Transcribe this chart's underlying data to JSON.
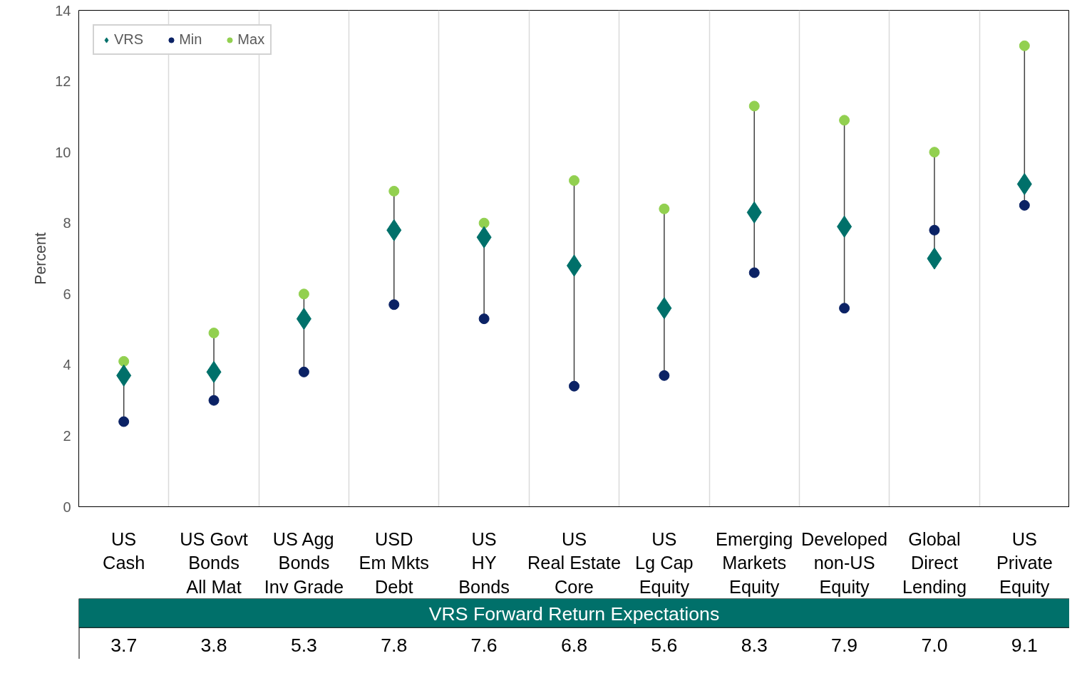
{
  "chart_data": {
    "type": "scatter",
    "ylabel": "Percent",
    "categories": [
      "US\nCash",
      "US Govt\nBonds\nAll Mat",
      "US Agg\nBonds\nInv Grade",
      "USD\nEm Mkts\nDebt",
      "US\nHY\nBonds",
      "US\nReal Estate\nCore",
      "US\nLg Cap\nEquity",
      "Emerging\nMarkets\nEquity",
      "Developed\nnon-US\nEquity",
      "Global\nDirect\nLending",
      "US\nPrivate\nEquity"
    ],
    "series": [
      {
        "name": "VRS",
        "color": "#00706a",
        "marker": "diamond",
        "values": [
          3.7,
          3.8,
          5.3,
          7.8,
          7.6,
          6.8,
          5.6,
          8.3,
          7.9,
          7.0,
          9.1
        ],
        "value_labels": [
          "3.7",
          "3.8",
          "5.3",
          "7.8",
          "7.6",
          "6.8",
          "5.6",
          "8.3",
          "7.9",
          "7.0",
          "9.1"
        ]
      },
      {
        "name": "Min",
        "color": "#0b2265",
        "marker": "circle",
        "values": [
          2.4,
          3.0,
          3.8,
          5.7,
          5.3,
          3.4,
          3.7,
          6.6,
          5.6,
          7.8,
          8.5
        ]
      },
      {
        "name": "Max",
        "color": "#92d050",
        "marker": "circle",
        "values": [
          4.1,
          4.9,
          6.0,
          8.9,
          8.0,
          9.2,
          8.4,
          11.3,
          10.9,
          10.0,
          13.0
        ]
      }
    ],
    "ylim": [
      0,
      14
    ],
    "yticks": [
      0,
      2,
      4,
      6,
      8,
      10,
      12,
      14
    ],
    "grid": "x",
    "legend": "top left",
    "annotations": [
      "VRS Forward Return Expectations"
    ]
  }
}
